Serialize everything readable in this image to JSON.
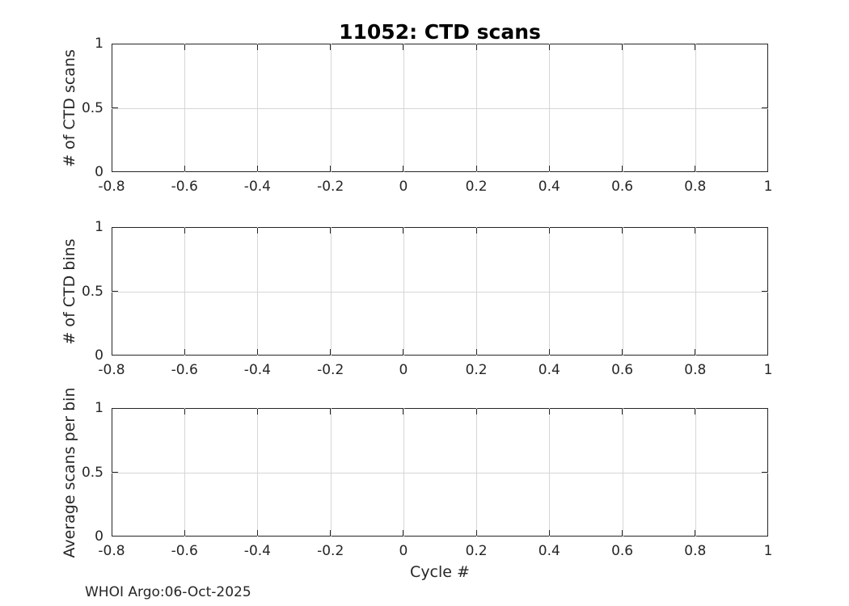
{
  "figure_title": "11052: CTD scans",
  "footer": {
    "text": "WHOI Argo:06-Oct-2025"
  },
  "colors": {
    "background": "#ffffff",
    "axis": "#262626",
    "grid": "#d6d6d6",
    "text": "#262626",
    "title_text": "#000000"
  },
  "chart_data": [
    {
      "type": "line",
      "title": "11052: CTD scans",
      "xlabel": "",
      "ylabel": "# of CTD scans",
      "xlim": [
        -0.8,
        1
      ],
      "ylim": [
        0,
        1
      ],
      "xticks": [
        -0.8,
        -0.6,
        -0.4,
        -0.2,
        0,
        0.2,
        0.4,
        0.6,
        0.8,
        1
      ],
      "xtick_labels": [
        "-0.8",
        "-0.6",
        "-0.4",
        "-0.2",
        "0",
        "0.2",
        "0.4",
        "0.6",
        "0.8",
        "1"
      ],
      "yticks": [
        0,
        0.5,
        1
      ],
      "ytick_labels": [
        "0",
        "0.5",
        "1"
      ],
      "grid": true,
      "box": true,
      "tick_dir": "in",
      "series": []
    },
    {
      "type": "line",
      "title": "",
      "xlabel": "",
      "ylabel": "# of CTD bins",
      "xlim": [
        -0.8,
        1
      ],
      "ylim": [
        0,
        1
      ],
      "xticks": [
        -0.8,
        -0.6,
        -0.4,
        -0.2,
        0,
        0.2,
        0.4,
        0.6,
        0.8,
        1
      ],
      "xtick_labels": [
        "-0.8",
        "-0.6",
        "-0.4",
        "-0.2",
        "0",
        "0.2",
        "0.4",
        "0.6",
        "0.8",
        "1"
      ],
      "yticks": [
        0,
        0.5,
        1
      ],
      "ytick_labels": [
        "0",
        "0.5",
        "1"
      ],
      "grid": true,
      "box": true,
      "tick_dir": "in",
      "series": []
    },
    {
      "type": "line",
      "title": "",
      "xlabel": "Cycle #",
      "ylabel": "Average scans per bin",
      "xlim": [
        -0.8,
        1
      ],
      "ylim": [
        0,
        1
      ],
      "xticks": [
        -0.8,
        -0.6,
        -0.4,
        -0.2,
        0,
        0.2,
        0.4,
        0.6,
        0.8,
        1
      ],
      "xtick_labels": [
        "-0.8",
        "-0.6",
        "-0.4",
        "-0.2",
        "0",
        "0.2",
        "0.4",
        "0.6",
        "0.8",
        "1"
      ],
      "yticks": [
        0,
        0.5,
        1
      ],
      "ytick_labels": [
        "0",
        "0.5",
        "1"
      ],
      "grid": true,
      "box": true,
      "tick_dir": "in",
      "series": []
    }
  ]
}
